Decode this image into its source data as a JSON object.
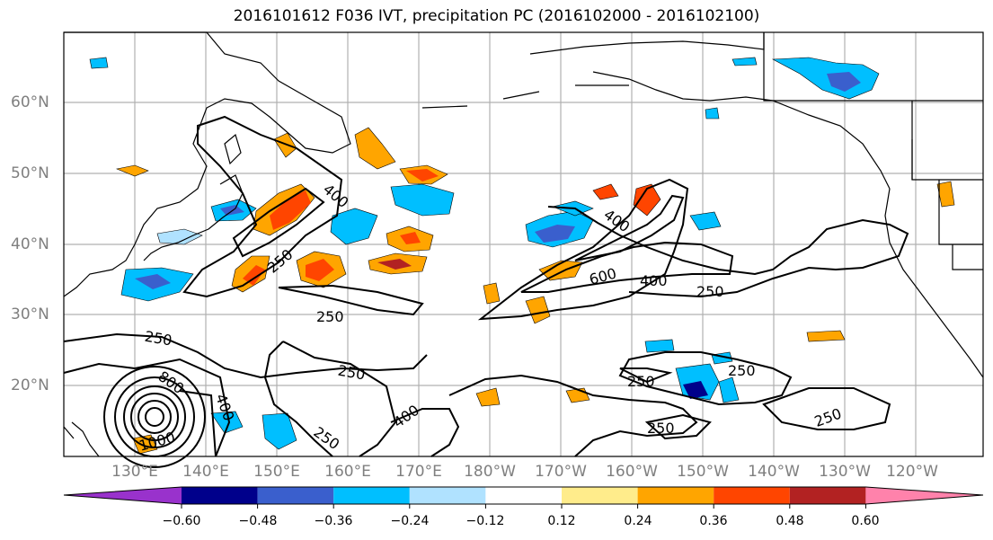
{
  "title": "2016101612 F036 IVT, precipitation PC (2016102000 - 2016102100)",
  "lat_labels": [
    "60°N",
    "50°N",
    "40°N",
    "30°N",
    "20°N"
  ],
  "lon_labels": [
    "130°E",
    "140°E",
    "150°E",
    "160°E",
    "170°E",
    "180°W",
    "170°W",
    "160°W",
    "150°W",
    "140°W",
    "130°W",
    "120°W"
  ],
  "contour_labels": [
    "400",
    "250",
    "250",
    "250",
    "250",
    "400",
    "250",
    "400",
    "600",
    "400",
    "250",
    "250",
    "250",
    "800",
    "1000",
    "400",
    "250",
    "250",
    "400",
    "250"
  ],
  "colorbar": {
    "colors": [
      "#9932cc",
      "#00008b",
      "#3a5fcd",
      "#00bfff",
      "#b0e2ff",
      "#ffffff",
      "#ffec8b",
      "#ffa500",
      "#ff4500",
      "#b22222",
      "#ff82ab"
    ],
    "tick_labels": [
      "−0.60",
      "−0.48",
      "−0.36",
      "−0.24",
      "−0.12",
      "0.12",
      "0.24",
      "0.36",
      "0.48",
      "0.60"
    ]
  },
  "colors": {
    "coast": "#000000",
    "grid": "#b0b0b0",
    "contour": "#000000",
    "axis_label": "#7f7f7f"
  }
}
